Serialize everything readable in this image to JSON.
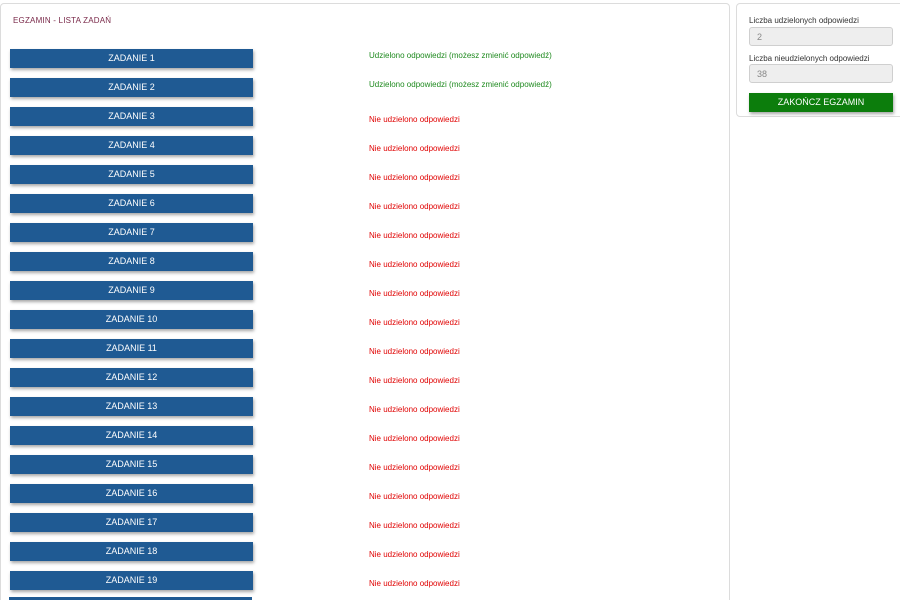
{
  "main": {
    "title": "EGZAMIN - LISTA ZADAŃ",
    "tasks": [
      {
        "label": "ZADANIE 1",
        "status": "Udzielono odpowiedzi (możesz zmienić odpowiedź)",
        "answered": true
      },
      {
        "label": "ZADANIE 2",
        "status": "Udzielono odpowiedzi (możesz zmienić odpowiedź)",
        "answered": true
      },
      {
        "label": "ZADANIE 3",
        "status": "Nie udzielono odpowiedzi",
        "answered": false
      },
      {
        "label": "ZADANIE 4",
        "status": "Nie udzielono odpowiedzi",
        "answered": false
      },
      {
        "label": "ZADANIE 5",
        "status": "Nie udzielono odpowiedzi",
        "answered": false
      },
      {
        "label": "ZADANIE 6",
        "status": "Nie udzielono odpowiedzi",
        "answered": false
      },
      {
        "label": "ZADANIE 7",
        "status": "Nie udzielono odpowiedzi",
        "answered": false
      },
      {
        "label": "ZADANIE 8",
        "status": "Nie udzielono odpowiedzi",
        "answered": false
      },
      {
        "label": "ZADANIE 9",
        "status": "Nie udzielono odpowiedzi",
        "answered": false
      },
      {
        "label": "ZADANIE 10",
        "status": "Nie udzielono odpowiedzi",
        "answered": false
      },
      {
        "label": "ZADANIE 11",
        "status": "Nie udzielono odpowiedzi",
        "answered": false
      },
      {
        "label": "ZADANIE 12",
        "status": "Nie udzielono odpowiedzi",
        "answered": false
      },
      {
        "label": "ZADANIE 13",
        "status": "Nie udzielono odpowiedzi",
        "answered": false
      },
      {
        "label": "ZADANIE 14",
        "status": "Nie udzielono odpowiedzi",
        "answered": false
      },
      {
        "label": "ZADANIE 15",
        "status": "Nie udzielono odpowiedzi",
        "answered": false
      },
      {
        "label": "ZADANIE 16",
        "status": "Nie udzielono odpowiedzi",
        "answered": false
      },
      {
        "label": "ZADANIE 17",
        "status": "Nie udzielono odpowiedzi",
        "answered": false
      },
      {
        "label": "ZADANIE 18",
        "status": "Nie udzielono odpowiedzi",
        "answered": false
      },
      {
        "label": "ZADANIE 19",
        "status": "Nie udzielono odpowiedzi",
        "answered": false
      }
    ]
  },
  "side": {
    "answered_label": "Liczba udzielonych odpowiedzi",
    "answered_value": "2",
    "unanswered_label": "Liczba nieudzielonych odpowiedzi",
    "unanswered_value": "38",
    "finish_label": "ZAKOŃCZ EGZAMIN"
  },
  "colors": {
    "task_button": "#1f5a93",
    "answered_status": "#1f8a1f",
    "unanswered_status": "#e00000",
    "finish_button": "#0c7d0c",
    "title": "#7a2a4a"
  }
}
